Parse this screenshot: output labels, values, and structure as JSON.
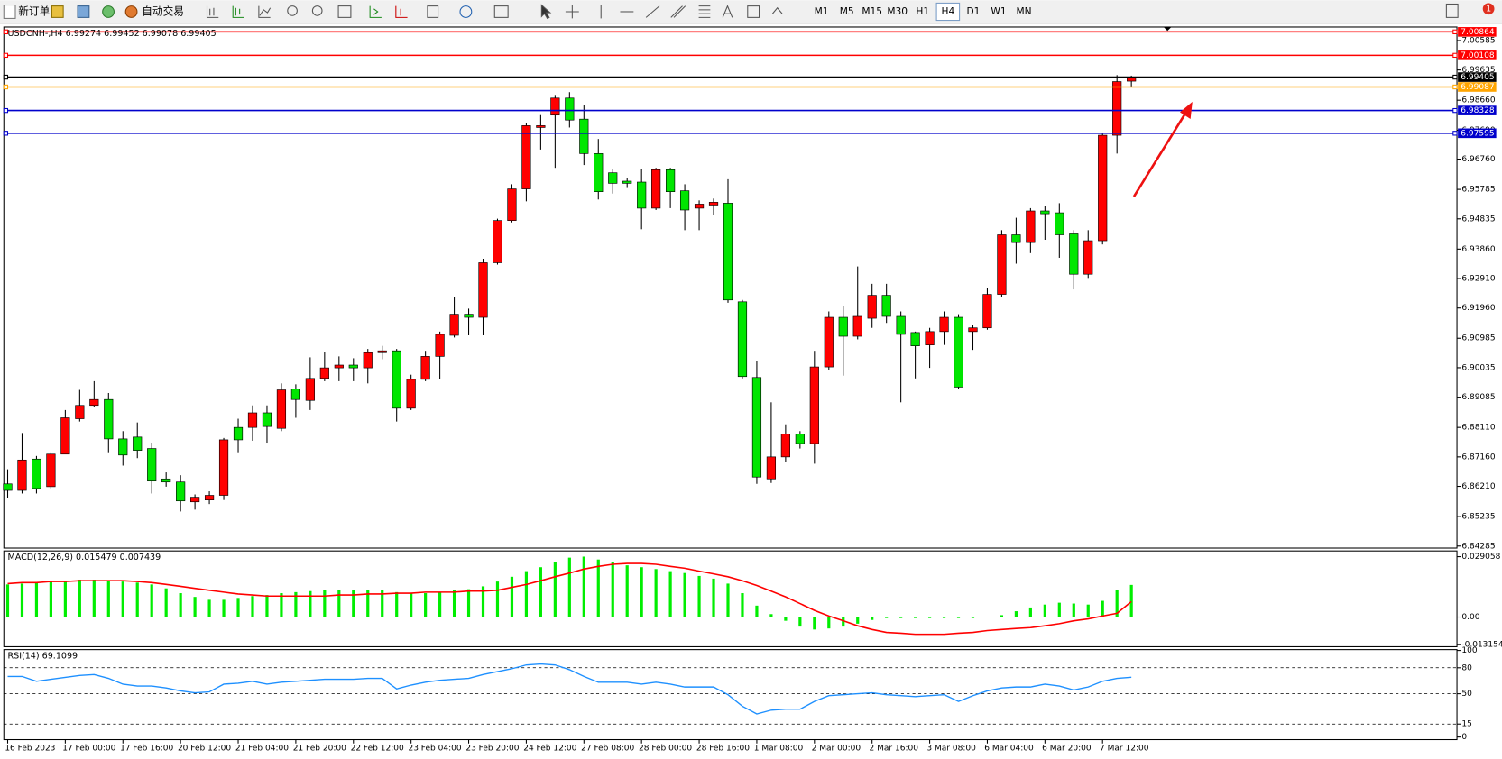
{
  "toolbar": {
    "new_order": "新订单",
    "auto_trading": "自动交易",
    "timeframes": [
      "M1",
      "M5",
      "M15",
      "M30",
      "H1",
      "H4",
      "D1",
      "W1",
      "MN"
    ],
    "active_timeframe": "H4",
    "notifications": "1"
  },
  "chart_data": [
    {
      "type": "candlestick",
      "title": "USDCNH-,H4  6.99274 6.99452 6.99078 6.99405",
      "categories": [
        "16 Feb 2023",
        null,
        null,
        null,
        "17 Feb 00:00",
        null,
        null,
        null,
        "17 Feb 16:00",
        null,
        null,
        null,
        "20 Feb 12:00",
        null,
        null,
        null,
        "21 Feb 04:00",
        null,
        null,
        null,
        "21 Feb 20:00",
        null,
        null,
        null,
        "22 Feb 12:00",
        null,
        null,
        null,
        "23 Feb 04:00",
        null,
        null,
        null,
        "23 Feb 20:00",
        null,
        null,
        null,
        "24 Feb 12:00",
        null,
        null,
        null,
        "27 Feb 08:00",
        null,
        null,
        null,
        "28 Feb 00:00",
        null,
        null,
        null,
        "28 Feb 16:00",
        null,
        null,
        null,
        "1 Mar 08:00",
        null,
        null,
        null,
        "2 Mar 00:00",
        null,
        null,
        null,
        "2 Mar 16:00",
        null,
        null,
        null,
        "3 Mar 08:00",
        null,
        null,
        null,
        "6 Mar 04:00",
        null,
        null,
        null,
        "6 Mar 20:00",
        null,
        null,
        null,
        "7 Mar 12:00",
        null,
        null
      ],
      "open": [
        6.8629,
        6.8608,
        6.8709,
        6.862,
        6.8725,
        6.8839,
        6.8882,
        6.8901,
        6.8774,
        6.878,
        6.8743,
        6.8645,
        6.8635,
        6.8571,
        6.8577,
        6.8592,
        6.8811,
        6.8811,
        6.8858,
        6.8808,
        6.8935,
        6.8898,
        6.8969,
        6.9003,
        6.9012,
        6.9003,
        6.9052,
        6.9058,
        6.8873,
        6.8966,
        6.904,
        6.9108,
        6.9176,
        6.9166,
        6.9342,
        6.9478,
        6.958,
        6.9778,
        6.9818,
        6.9873,
        6.9805,
        6.9694,
        6.9632,
        6.9605,
        6.9602,
        6.9518,
        6.9642,
        6.9574,
        6.9518,
        6.9528,
        6.9534,
        6.9216,
        6.8972,
        6.8645,
        6.8716,
        6.879,
        6.8759,
        6.9006,
        6.9166,
        6.9105,
        6.9163,
        6.9237,
        6.9169,
        6.9117,
        6.9077,
        6.912,
        6.9166,
        6.912,
        6.9132,
        6.924,
        6.9432,
        6.9407,
        6.9509,
        6.9503,
        6.9435,
        6.9305,
        6.9413,
        6.9753,
        6.99274
      ],
      "high": [
        6.8676,
        6.8793,
        6.8719,
        6.8731,
        6.8867,
        6.8932,
        6.896,
        6.8922,
        6.8799,
        6.8827,
        6.8762,
        6.8666,
        6.8657,
        6.8595,
        6.8605,
        6.8777,
        6.8839,
        6.8882,
        6.8882,
        6.8953,
        6.895,
        6.9037,
        6.9055,
        6.904,
        6.9034,
        6.9064,
        6.9074,
        6.9064,
        6.8981,
        6.9058,
        6.912,
        6.9231,
        6.9194,
        6.9355,
        6.9484,
        6.9595,
        6.9793,
        6.9818,
        6.9883,
        6.9892,
        6.9852,
        6.9741,
        6.9645,
        6.9614,
        6.9645,
        6.9648,
        6.9648,
        6.9595,
        6.9543,
        6.9549,
        6.9611,
        6.9222,
        6.9024,
        6.8892,
        6.8821,
        6.8799,
        6.9058,
        6.9185,
        6.9203,
        6.933,
        6.9274,
        6.9274,
        6.9185,
        6.912,
        6.9132,
        6.9185,
        6.9176,
        6.9142,
        6.9262,
        6.9447,
        6.9487,
        6.9518,
        6.9524,
        6.9534,
        6.9447,
        6.9447,
        6.9759,
        6.9947,
        6.99452
      ],
      "low": [
        6.8583,
        6.8598,
        6.8598,
        6.8614,
        6.8725,
        6.883,
        6.8876,
        6.8731,
        6.8688,
        6.8712,
        6.8598,
        6.862,
        6.854,
        6.8546,
        6.8564,
        6.8577,
        6.8731,
        6.8768,
        6.8762,
        6.8799,
        6.8842,
        6.8867,
        6.896,
        6.896,
        6.896,
        6.8953,
        6.9031,
        6.883,
        6.8867,
        6.896,
        6.8966,
        6.9101,
        6.9108,
        6.9108,
        6.9336,
        6.9472,
        6.954,
        6.9707,
        6.9648,
        6.9778,
        6.9657,
        6.9546,
        6.9565,
        6.9583,
        6.945,
        6.9512,
        6.9518,
        6.9447,
        6.9447,
        6.9497,
        6.9213,
        6.8969,
        6.8629,
        6.8632,
        6.87,
        6.8743,
        6.8694,
        6.8997,
        6.8978,
        6.9095,
        6.9132,
        6.9148,
        6.8892,
        6.8969,
        6.9003,
        6.9077,
        6.8935,
        6.9061,
        6.9126,
        6.9231,
        6.9339,
        6.9373,
        6.9416,
        6.9358,
        6.9256,
        6.9293,
        6.9401,
        6.9694,
        6.99078
      ],
      "close": [
        6.8608,
        6.8706,
        6.8614,
        6.8725,
        6.8842,
        6.8882,
        6.8901,
        6.8774,
        6.8722,
        6.8737,
        6.8638,
        6.8635,
        6.8574,
        6.8586,
        6.8592,
        6.8771,
        6.8771,
        6.8858,
        6.8814,
        6.8932,
        6.8901,
        6.8969,
        6.9003,
        6.9012,
        6.9003,
        6.9052,
        6.9058,
        6.8873,
        6.8966,
        6.904,
        6.9111,
        6.9176,
        6.9166,
        6.9342,
        6.9478,
        6.958,
        6.9784,
        6.9784,
        6.9873,
        6.9802,
        6.9694,
        6.9571,
        6.9598,
        6.9598,
        6.9518,
        6.9642,
        6.9571,
        6.9512,
        6.9531,
        6.9537,
        6.9222,
        6.8975,
        6.8651,
        6.8716,
        6.879,
        6.8759,
        6.9006,
        6.9166,
        6.9105,
        6.9169,
        6.9237,
        6.9169,
        6.9111,
        6.9074,
        6.912,
        6.9166,
        6.8941,
        6.9132,
        6.924,
        6.9432,
        6.9407,
        6.9509,
        6.95,
        6.9432,
        6.9305,
        6.9413,
        6.9753,
        6.9926,
        6.99405
      ],
      "up_color": "#ff0000",
      "down_color": "#00e600",
      "ylim": [
        6.8422,
        7.0102
      ],
      "yticks": [
        7.00585,
        6.99635,
        {
          "value": 6.9866,
          "label": "6.98660"
        },
        {
          "value": 6.9769,
          "label": "6.97690"
        },
        {
          "value": 6.9676,
          "label": "6.96760"
        },
        6.95785,
        6.94835,
        {
          "value": 6.9386,
          "label": "6.93860"
        },
        {
          "value": 6.9291,
          "label": "6.92910"
        },
        {
          "value": 6.9196,
          "label": "6.91960"
        },
        6.90985,
        6.90035,
        6.89085,
        {
          "value": 6.8811,
          "label": "6.88110"
        },
        {
          "value": 6.8716,
          "label": "6.87160"
        },
        {
          "value": 6.8621,
          "label": "6.86210"
        },
        6.85235,
        6.84285
      ],
      "hlines": [
        {
          "value": 7.00864,
          "color": "#ff0000"
        },
        {
          "value": 7.00108,
          "color": "#ff0000"
        },
        {
          "value": 6.99405,
          "color": "#000000"
        },
        {
          "value": 6.99087,
          "color": "#ffa500"
        },
        {
          "value": 6.98328,
          "color": "#0000cc"
        },
        {
          "value": 6.97595,
          "color": "#0000cc"
        }
      ]
    },
    {
      "type": "macd",
      "title": "MACD(12,26,9) 0.015479 0.007439",
      "histogram": {
        "color": "#00ee00",
        "values": [
          0.0157,
          0.0161,
          0.0166,
          0.0171,
          0.0175,
          0.018,
          0.018,
          0.0175,
          0.0171,
          0.0166,
          0.0157,
          0.0138,
          0.0115,
          0.0097,
          0.0083,
          0.0083,
          0.0092,
          0.0101,
          0.0106,
          0.0115,
          0.012,
          0.0125,
          0.0129,
          0.0129,
          0.0129,
          0.0129,
          0.0129,
          0.012,
          0.0115,
          0.0115,
          0.012,
          0.0129,
          0.0134,
          0.0148,
          0.0171,
          0.0194,
          0.0221,
          0.024,
          0.0263,
          0.0286,
          0.0291,
          0.0277,
          0.0263,
          0.0249,
          0.024,
          0.0231,
          0.0221,
          0.0212,
          0.0198,
          0.0185,
          0.0161,
          0.0115,
          0.0055,
          0.0014,
          -0.0018,
          -0.0046,
          -0.006,
          -0.0055,
          -0.0046,
          -0.0032,
          -0.0014,
          -0.0005,
          -0.0005,
          -0.0005,
          -0.0005,
          -0.0005,
          -0.0005,
          -0.0005,
          0.0002,
          0.0009,
          0.0028,
          0.0046,
          0.006,
          0.0069,
          0.0065,
          0.006,
          0.0078,
          0.0129,
          0.015479
        ]
      },
      "signal": {
        "color": "#ff0000",
        "values": [
          0.0161,
          0.0166,
          0.0166,
          0.0171,
          0.0171,
          0.0175,
          0.0175,
          0.0175,
          0.0175,
          0.0171,
          0.0166,
          0.0157,
          0.0148,
          0.0138,
          0.0129,
          0.012,
          0.0111,
          0.0106,
          0.0101,
          0.0101,
          0.0101,
          0.0101,
          0.0101,
          0.0106,
          0.0106,
          0.0111,
          0.0111,
          0.0115,
          0.0115,
          0.012,
          0.012,
          0.012,
          0.0125,
          0.0125,
          0.0129,
          0.0143,
          0.0157,
          0.0175,
          0.0194,
          0.0212,
          0.0231,
          0.0244,
          0.0254,
          0.0258,
          0.0258,
          0.0254,
          0.0244,
          0.0235,
          0.0221,
          0.0208,
          0.0194,
          0.0175,
          0.0152,
          0.0125,
          0.0097,
          0.0065,
          0.0032,
          0.0005,
          -0.0018,
          -0.0042,
          -0.006,
          -0.0074,
          -0.0078,
          -0.0083,
          -0.0083,
          -0.0083,
          -0.0078,
          -0.0074,
          -0.0065,
          -0.006,
          -0.0055,
          -0.0051,
          -0.0042,
          -0.0032,
          -0.0018,
          -0.0009,
          0.0005,
          0.0018,
          0.007439
        ]
      },
      "ylim": [
        -0.0143,
        0.03183
      ],
      "yticks": [
        0.029058,
        {
          "value": 0,
          "label": "0.00"
        },
        -0.013154
      ]
    },
    {
      "type": "rsi",
      "title": "RSI(14) 69.1099",
      "color": "#1e90ff",
      "values": [
        70.0,
        70.0,
        64.4,
        66.7,
        68.9,
        71.1,
        72.2,
        67.8,
        61.1,
        58.9,
        58.9,
        56.7,
        53.3,
        51.1,
        52.2,
        61.1,
        62.2,
        64.4,
        61.1,
        63.3,
        64.4,
        65.6,
        66.7,
        66.7,
        66.7,
        67.8,
        67.8,
        55.6,
        60.0,
        63.3,
        65.6,
        66.7,
        67.8,
        72.2,
        75.6,
        78.9,
        83.3,
        84.4,
        83.3,
        77.8,
        70.0,
        63.3,
        63.3,
        63.3,
        61.1,
        63.3,
        61.1,
        57.8,
        57.8,
        57.8,
        48.9,
        35.6,
        26.7,
        31.1,
        32.2,
        32.2,
        41.1,
        47.8,
        48.9,
        50.0,
        51.1,
        48.9,
        47.8,
        46.7,
        47.8,
        48.9,
        41.1,
        47.8,
        53.3,
        56.7,
        57.8,
        57.8,
        61.1,
        58.9,
        54.4,
        57.8,
        64.4,
        67.8,
        69.1099
      ],
      "ylim": [
        -3,
        101
      ],
      "yticks": [
        0,
        15,
        50,
        80,
        100
      ],
      "levels": [
        15,
        50,
        80
      ]
    }
  ]
}
